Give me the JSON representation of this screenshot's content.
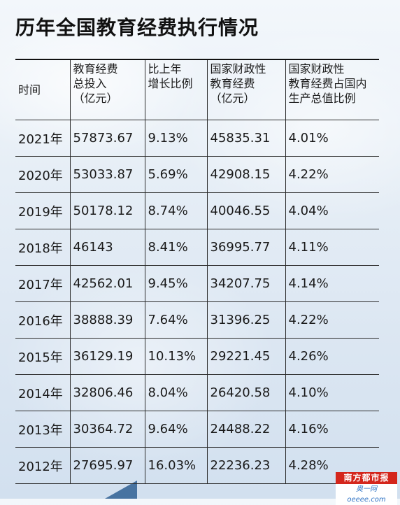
{
  "title": "历年全国教育经费执行情况",
  "table": {
    "headers": [
      [
        "时间"
      ],
      [
        "教育经费",
        "总投入",
        "（亿元）"
      ],
      [
        "比上年",
        "增长比例"
      ],
      [
        "国家财政性",
        "教育经费",
        "（亿元）"
      ],
      [
        "国家财政性",
        "教育经费占国内",
        "生产总值比例"
      ]
    ],
    "rows": [
      [
        "2021年",
        "57873.67",
        "9.13%",
        "45835.31",
        "4.01%"
      ],
      [
        "2020年",
        "53033.87",
        "5.69%",
        "42908.15",
        "4.22%"
      ],
      [
        "2019年",
        "50178.12",
        "8.74%",
        "40046.55",
        "4.04%"
      ],
      [
        "2018年",
        "46143",
        "8.41%",
        "36995.77",
        "4.11%"
      ],
      [
        "2017年",
        "42562.01",
        "9.45%",
        "34207.75",
        "4.14%"
      ],
      [
        "2016年",
        "38888.39",
        "7.64%",
        "31396.25",
        "4.22%"
      ],
      [
        "2015年",
        "36129.19",
        "10.13%",
        "29221.45",
        "4.26%"
      ],
      [
        "2014年",
        "32806.46",
        "8.04%",
        "26420.58",
        "4.10%"
      ],
      [
        "2013年",
        "30364.72",
        "9.64%",
        "24488.22",
        "4.16%"
      ],
      [
        "2012年",
        "27695.97",
        "16.03%",
        "22236.23",
        "4.28%"
      ]
    ]
  },
  "watermark": {
    "name": "南方都市报",
    "site": "奥一网 oeeee.com"
  }
}
